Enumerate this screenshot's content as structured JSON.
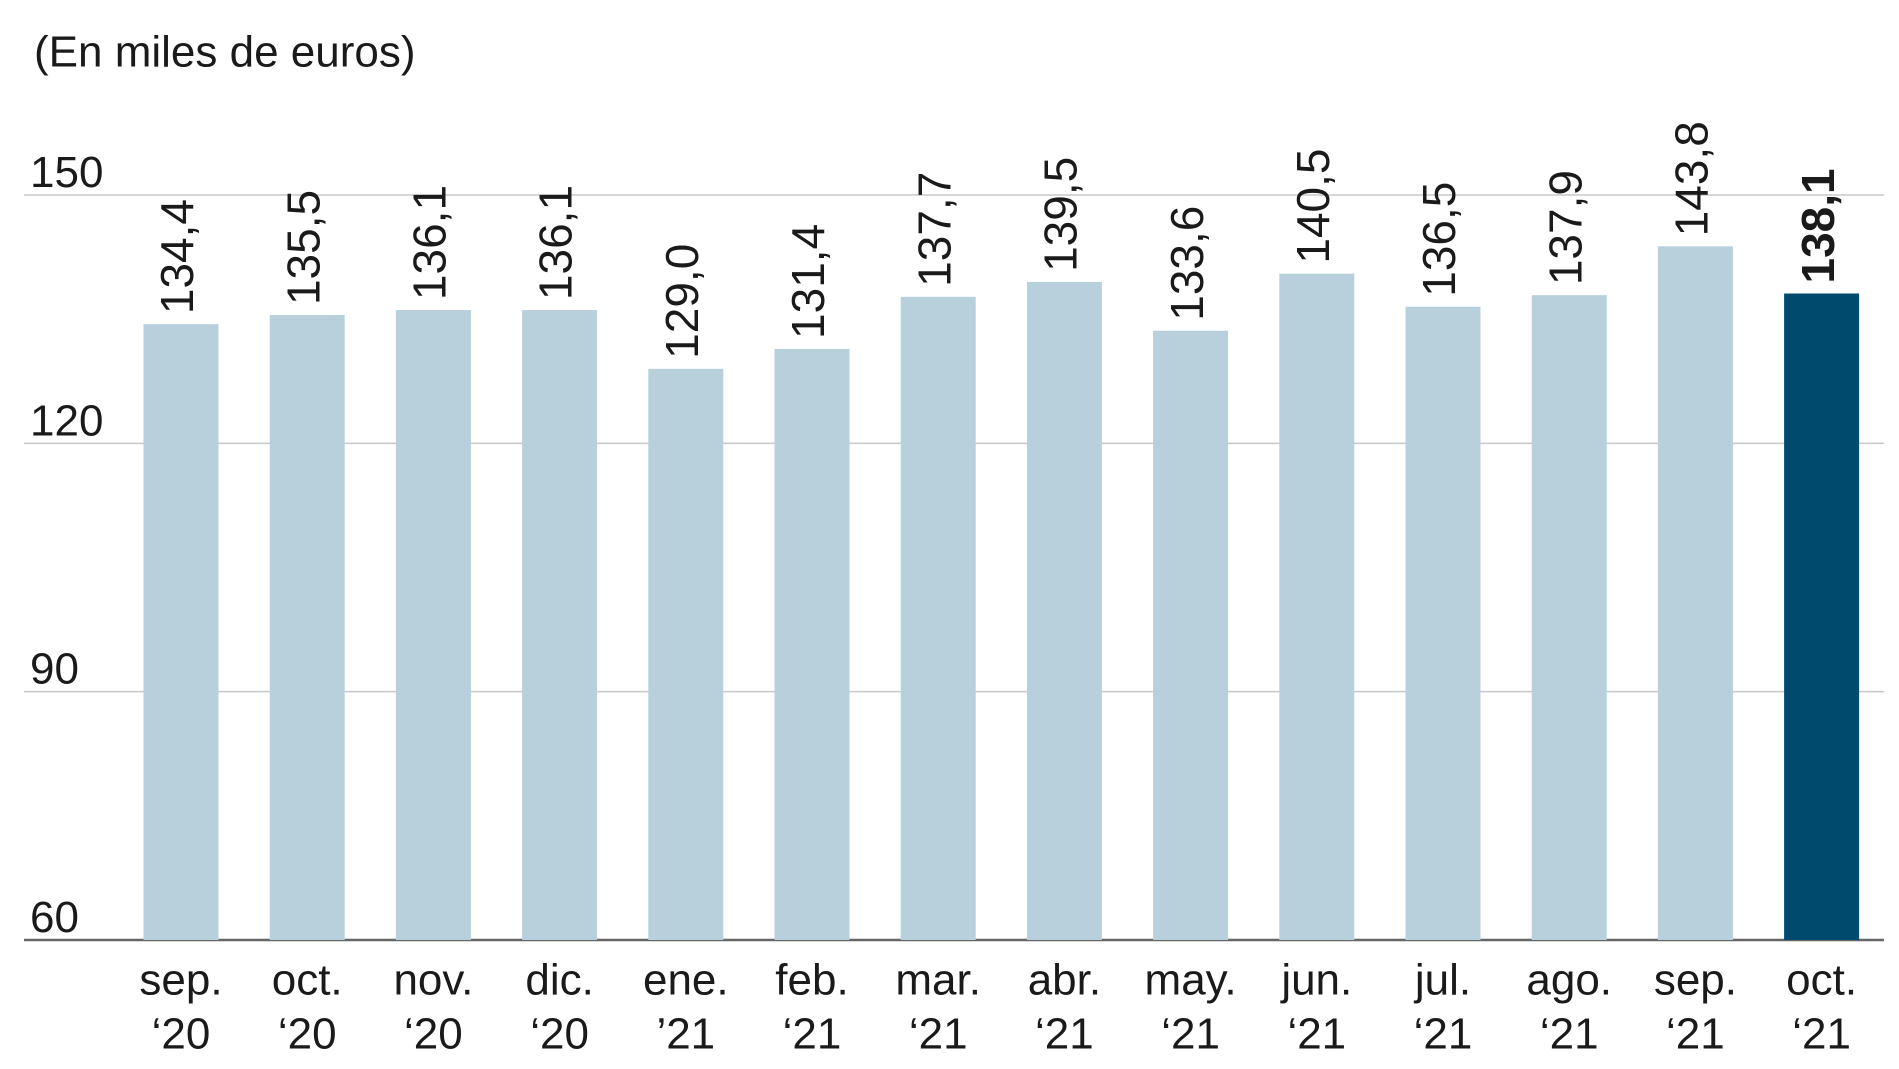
{
  "chart_data": {
    "type": "bar",
    "subtitle": "(En miles de euros)",
    "categories": [
      [
        "sep.",
        "‘20"
      ],
      [
        "oct.",
        "‘20"
      ],
      [
        "nov.",
        "‘20"
      ],
      [
        "dic.",
        "‘20"
      ],
      [
        "ene.",
        "’21"
      ],
      [
        "feb.",
        "‘21"
      ],
      [
        "mar.",
        "‘21"
      ],
      [
        "abr.",
        "‘21"
      ],
      [
        "may.",
        "‘21"
      ],
      [
        "jun.",
        "‘21"
      ],
      [
        "jul.",
        "‘21"
      ],
      [
        "ago.",
        "‘21"
      ],
      [
        "sep.",
        "‘21"
      ],
      [
        "oct.",
        "‘21"
      ]
    ],
    "values": [
      134.4,
      135.5,
      136.1,
      136.1,
      129.0,
      131.4,
      137.7,
      139.5,
      133.6,
      140.5,
      136.5,
      137.9,
      143.8,
      138.1
    ],
    "value_labels": [
      "134,4",
      "135,5",
      "136,1",
      "136,1",
      "129,0",
      "131,4",
      "137,7",
      "139,5",
      "133,6",
      "140,5",
      "136,5",
      "137,9",
      "143,8",
      "138,1"
    ],
    "colors": [
      "#b8d0dc",
      "#b8d0dc",
      "#b8d0dc",
      "#b8d0dc",
      "#b8d0dc",
      "#b8d0dc",
      "#b8d0dc",
      "#b8d0dc",
      "#b8d0dc",
      "#b8d0dc",
      "#b8d0dc",
      "#b8d0dc",
      "#b8d0dc",
      "#004a6e"
    ],
    "ylim": [
      60,
      150
    ],
    "yticks": [
      60,
      90,
      120,
      150
    ],
    "grid": true
  }
}
